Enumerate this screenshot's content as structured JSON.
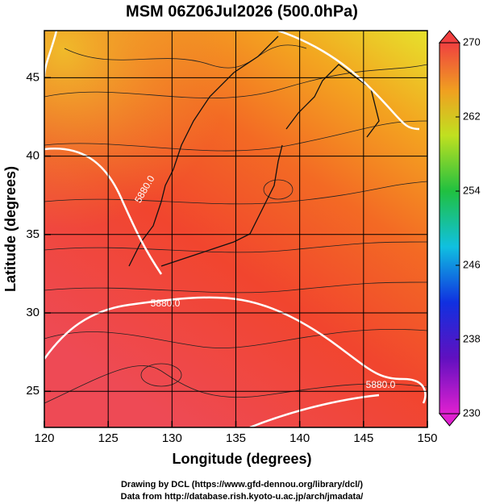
{
  "chart_data": {
    "type": "map",
    "title": "MSM 06Z06Jul2026 (500.0hPa)",
    "x_label": "Longitude (degrees)",
    "y_label": "Latitude  (degrees)",
    "xlim": [
      120,
      150
    ],
    "xticks": [
      120,
      125,
      130,
      135,
      140,
      145,
      150
    ],
    "ylim": [
      22.7,
      48.0
    ],
    "yticks": [
      25,
      30,
      35,
      40,
      45
    ],
    "grid": true,
    "colorbar": {
      "lim": [
        230,
        270
      ],
      "ticks": [
        230,
        238,
        246,
        254,
        262,
        270
      ]
    },
    "contour_labels": [
      "5880.0",
      "5880.0",
      "5880.0"
    ],
    "footer": [
      "Drawing by DCL (https://www.gfd-dennou.org/library/dcl/)",
      "Data from http://database.rish.kyoto-u.ac.jp/arch/jmadata/"
    ]
  }
}
